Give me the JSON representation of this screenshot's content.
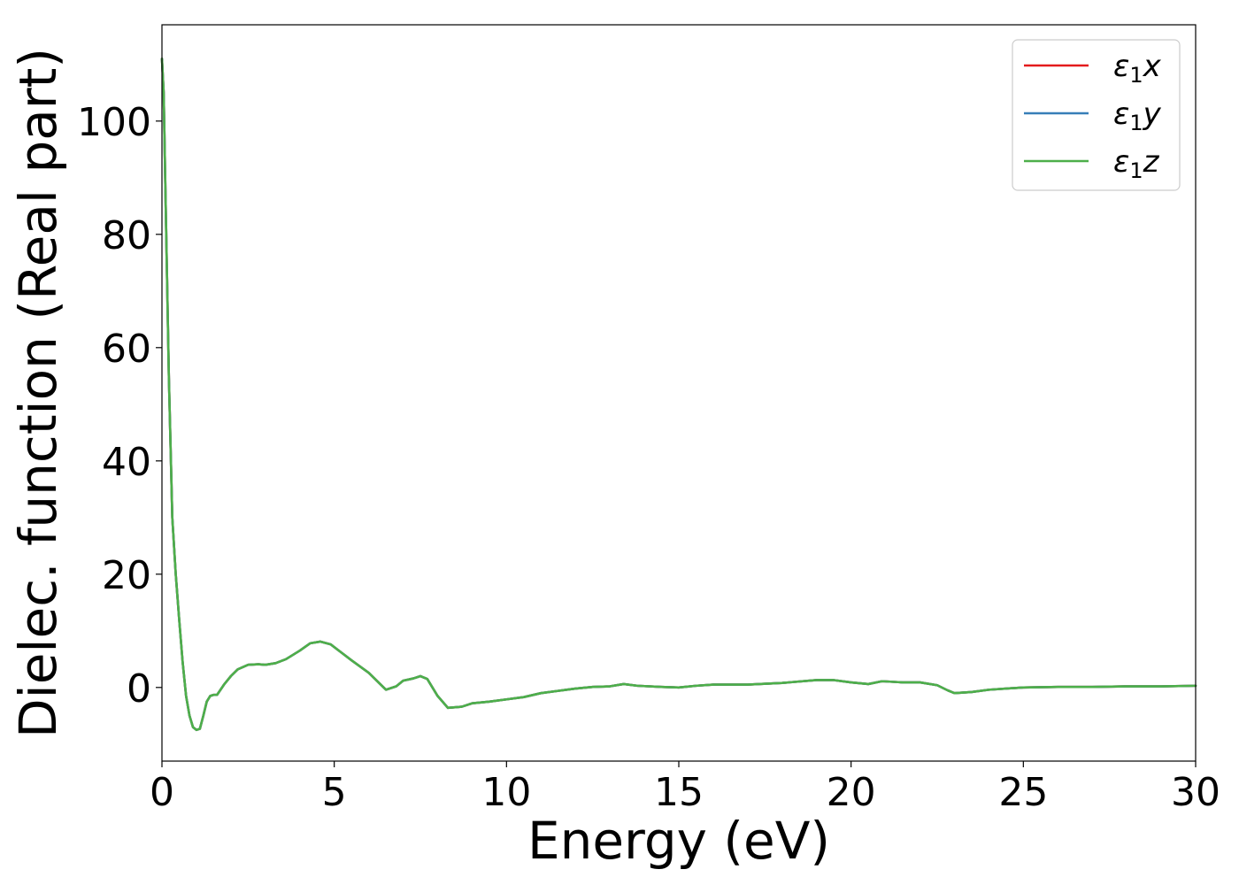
{
  "chart_data": {
    "type": "line",
    "xlabel": "Energy (eV)",
    "ylabel": "Dielec. function (Real part)",
    "xlim": [
      0,
      30
    ],
    "ylim": [
      -13,
      117
    ],
    "xticks": [
      0,
      5,
      10,
      15,
      20,
      25,
      30
    ],
    "yticks": [
      0,
      20,
      40,
      60,
      80,
      100
    ],
    "grid": false,
    "legend_position": "top-right",
    "series": [
      {
        "name": "ε₁x",
        "label_base": "ε",
        "label_sub": "1",
        "label_axis": "x",
        "color": "#e41a1c"
      },
      {
        "name": "ε₁y",
        "label_base": "ε",
        "label_sub": "1",
        "label_axis": "y",
        "color": "#377eb8"
      },
      {
        "name": "ε₁z",
        "label_base": "ε",
        "label_sub": "1",
        "label_axis": "z",
        "color": "#4daf4a"
      }
    ],
    "x": [
      0.0,
      0.05,
      0.1,
      0.2,
      0.3,
      0.4,
      0.5,
      0.6,
      0.7,
      0.8,
      0.9,
      1.0,
      1.1,
      1.2,
      1.3,
      1.4,
      1.5,
      1.6,
      1.8,
      2.0,
      2.2,
      2.5,
      2.8,
      3.0,
      3.3,
      3.6,
      4.0,
      4.3,
      4.6,
      4.9,
      5.2,
      5.5,
      6.0,
      6.3,
      6.5,
      6.8,
      7.0,
      7.3,
      7.5,
      7.7,
      8.0,
      8.3,
      8.7,
      9.0,
      9.5,
      10.0,
      10.5,
      11.0,
      11.5,
      12.0,
      12.5,
      13.0,
      13.4,
      13.8,
      14.5,
      15.0,
      15.5,
      16.0,
      17.0,
      18.0,
      19.0,
      19.5,
      20.0,
      20.5,
      20.9,
      21.5,
      22.0,
      22.5,
      22.8,
      23.0,
      23.5,
      24.0,
      25.0,
      26.0,
      27.0,
      28.0,
      29.0,
      30.0
    ],
    "values": [
      111.0,
      105.0,
      88.0,
      55.0,
      30.0,
      20.0,
      12.0,
      4.5,
      -1.5,
      -5.0,
      -7.0,
      -7.5,
      -7.3,
      -5.0,
      -2.5,
      -1.5,
      -1.3,
      -1.3,
      0.5,
      2.0,
      3.2,
      4.0,
      4.1,
      4.0,
      4.3,
      5.0,
      6.5,
      7.8,
      8.1,
      7.6,
      6.2,
      4.8,
      2.6,
      0.8,
      -0.4,
      0.2,
      1.2,
      1.6,
      2.0,
      1.5,
      -1.5,
      -3.6,
      -3.4,
      -2.8,
      -2.5,
      -2.1,
      -1.7,
      -1.0,
      -0.6,
      -0.2,
      0.1,
      0.2,
      0.6,
      0.3,
      0.1,
      0.0,
      0.3,
      0.5,
      0.5,
      0.8,
      1.3,
      1.3,
      0.9,
      0.6,
      1.1,
      0.9,
      0.9,
      0.4,
      -0.5,
      -1.0,
      -0.8,
      -0.4,
      0.0,
      0.1,
      0.1,
      0.2,
      0.2,
      0.3
    ]
  }
}
